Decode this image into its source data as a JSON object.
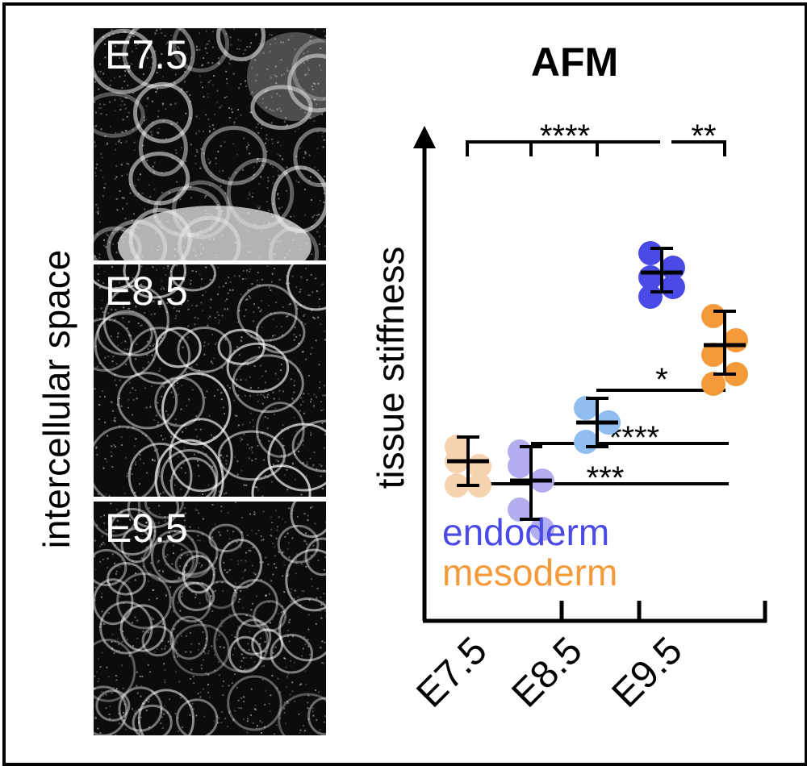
{
  "figure": {
    "micrograph_ylabel": "intercellular space",
    "panels": [
      {
        "label": "E7.5"
      },
      {
        "label": "E8.5"
      },
      {
        "label": "E9.5"
      }
    ]
  },
  "chart_data": {
    "type": "scatter",
    "title": "AFM",
    "ylabel": "tissue stiffness",
    "xlabel": "",
    "categories": [
      "E7.5",
      "E8.5",
      "E9.5"
    ],
    "y_scale": "arbitrary (no ticks printed)",
    "ylim": [
      0,
      10
    ],
    "legend": {
      "placement": "bottom-left",
      "entries": [
        "endoderm",
        "mesoderm"
      ]
    },
    "colors": {
      "endoderm": "#4a4ae6",
      "mesoderm": "#f59a3a"
    },
    "series": [
      {
        "name": "mesoderm",
        "stage": "E7.5",
        "color": "#f5d2b0",
        "points": [
          3.6,
          3.2,
          2.8,
          2.8,
          3.3
        ],
        "mean": 3.3,
        "sd": [
          2.8,
          3.8
        ]
      },
      {
        "name": "endoderm",
        "stage": "E7.5",
        "color": "#b3aef0",
        "points": [
          3.2,
          2.9,
          2.3,
          1.9,
          3.5
        ],
        "mean": 2.9,
        "sd": [
          2.1,
          3.6
        ]
      },
      {
        "name": "endoderm",
        "stage": "E8.5",
        "color": "#8fbdef",
        "points": [
          4.4,
          4.1,
          3.7,
          4.1
        ],
        "mean": 4.1,
        "sd": [
          3.6,
          4.6
        ]
      },
      {
        "name": "endoderm",
        "stage": "E9.5",
        "color": "#4a4ae6",
        "points": [
          7.6,
          7.3,
          7.1,
          6.9,
          6.7
        ],
        "mean": 7.2,
        "sd": [
          6.8,
          7.7
        ]
      },
      {
        "name": "mesoderm",
        "stage": "E9.5",
        "color": "#f59a3a",
        "points": [
          6.3,
          5.8,
          5.5,
          5.1,
          4.9
        ],
        "mean": 5.7,
        "sd": [
          5.1,
          6.4
        ]
      }
    ],
    "significance": [
      {
        "label": "****",
        "position": "top-left bracket"
      },
      {
        "label": "**",
        "position": "top-right bracket"
      },
      {
        "label": "*",
        "position": "lower"
      },
      {
        "label": "****",
        "position": "lower"
      },
      {
        "label": "***",
        "position": "lower"
      }
    ]
  }
}
